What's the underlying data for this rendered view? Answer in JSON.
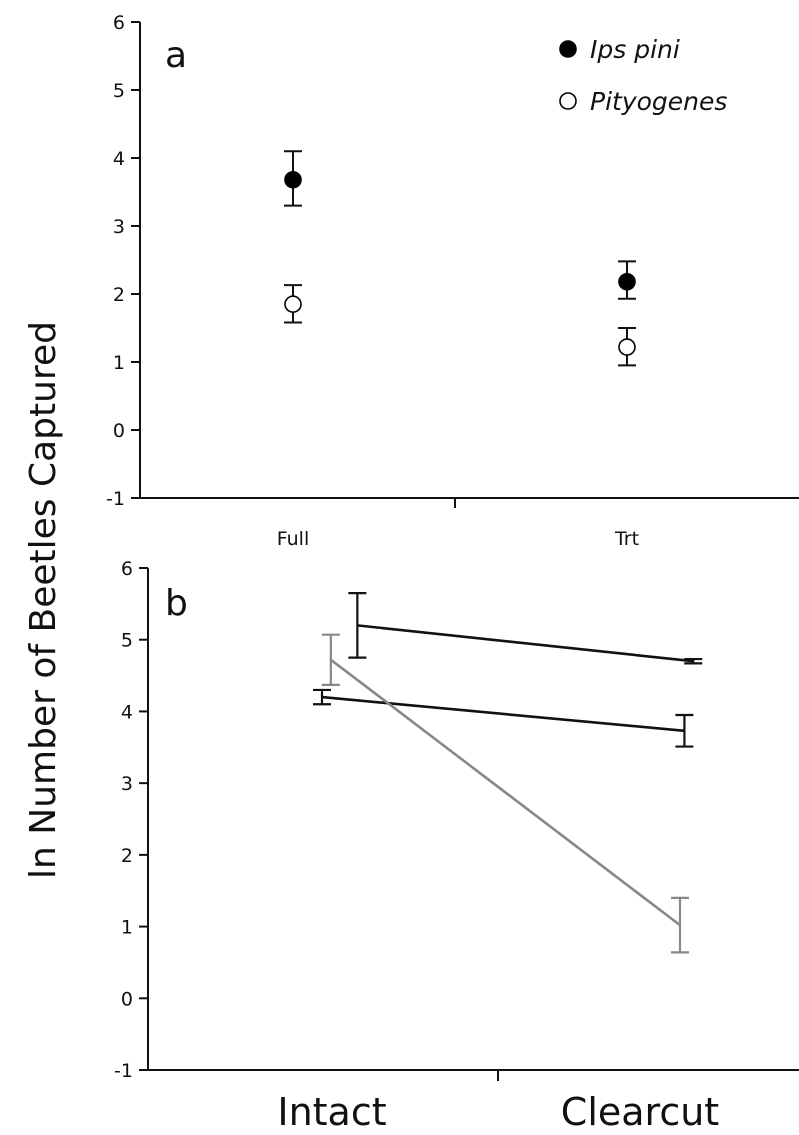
{
  "chart_data": [
    {
      "type": "scatter",
      "panel_label": "a",
      "categories": [
        "Full",
        "Trt"
      ],
      "ylim": [
        -1,
        6
      ],
      "yticks": [
        "6",
        "5",
        "4",
        "3",
        "2",
        "1",
        "0",
        "-1"
      ],
      "legend": {
        "placement": "top-right"
      },
      "series": [
        {
          "name": "Ips pini",
          "marker": "filled-circle",
          "color": "#000000",
          "values": [
            3.68,
            2.18
          ],
          "err_low": [
            0.38,
            0.25
          ],
          "err_high": [
            0.42,
            0.3
          ]
        },
        {
          "name": "Pityogenes",
          "marker": "open-circle",
          "color": "#000000",
          "values": [
            1.85,
            1.22
          ],
          "err_low": [
            0.27,
            0.27
          ],
          "err_high": [
            0.28,
            0.28
          ]
        }
      ]
    },
    {
      "type": "line",
      "panel_label": "b",
      "categories": [
        "Intact",
        "Clearcut"
      ],
      "ylim": [
        -1,
        6
      ],
      "yticks": [
        "6",
        "5",
        "4",
        "3",
        "2",
        "1",
        "0",
        "-1"
      ],
      "ylabel": "ln Number of Beetles Captured",
      "series": [
        {
          "color": "#111111",
          "x": [
            0.08,
            0.84
          ],
          "values": [
            5.2,
            4.7
          ],
          "err_low": [
            0.45,
            0.03
          ],
          "err_high": [
            0.45,
            0.03
          ]
        },
        {
          "color": "#111111",
          "x": [
            0.0,
            0.82
          ],
          "values": [
            4.2,
            3.73
          ],
          "err_low": [
            0.1,
            0.22
          ],
          "err_high": [
            0.1,
            0.22
          ]
        },
        {
          "color": "#888888",
          "x": [
            0.02,
            0.81
          ],
          "values": [
            4.72,
            1.02
          ],
          "err_low": [
            0.35,
            0.38
          ],
          "err_high": [
            0.35,
            0.38
          ]
        }
      ]
    }
  ]
}
